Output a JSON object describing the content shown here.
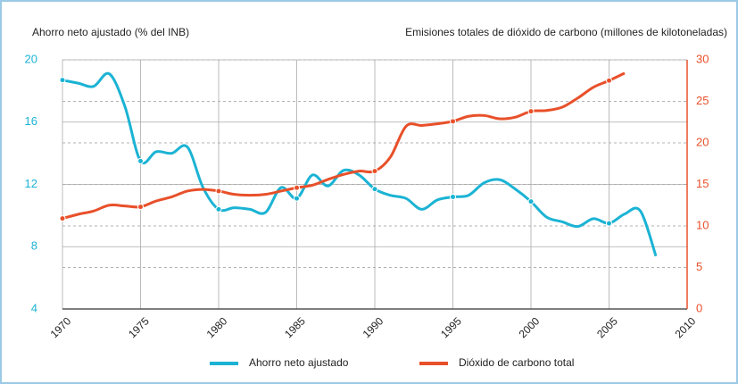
{
  "chart_data": {
    "type": "line",
    "y_label": "Ahorro neto ajustado (% del INB)",
    "y2_label": "Emisiones totales de dióxido de carbono (millones de kilotoneladas)",
    "x": [
      1970,
      1971,
      1972,
      1973,
      1974,
      1975,
      1976,
      1977,
      1978,
      1979,
      1980,
      1981,
      1982,
      1983,
      1984,
      1985,
      1986,
      1987,
      1988,
      1989,
      1990,
      1991,
      1992,
      1993,
      1994,
      1995,
      1996,
      1997,
      1998,
      1999,
      2000,
      2001,
      2002,
      2003,
      2004,
      2005,
      2006,
      2007,
      2008
    ],
    "series": [
      {
        "name": "Ahorro neto ajustado",
        "color": "#1bb3d4",
        "axis": "y",
        "values": [
          18.7,
          18.5,
          18.3,
          19.1,
          17,
          13.5,
          14.1,
          14,
          14.4,
          11.8,
          10.4,
          10.5,
          10.4,
          10.2,
          11.8,
          11.1,
          12.6,
          11.9,
          12.9,
          12.6,
          11.7,
          11.3,
          11.1,
          10.4,
          11,
          11.2,
          11.3,
          12.1,
          12.3,
          11.7,
          10.9,
          9.9,
          9.6,
          9.3,
          9.8,
          9.5,
          10.1,
          10.3,
          7.4
        ]
      },
      {
        "name": "Dióxido de carbono total",
        "color": "#e8502a",
        "axis": "y2",
        "values": [
          10.9,
          11.4,
          11.8,
          12.5,
          12.4,
          12.3,
          13,
          13.5,
          14.2,
          14.4,
          14.2,
          13.8,
          13.7,
          13.8,
          14.2,
          14.6,
          14.9,
          15.6,
          16.2,
          16.6,
          16.6,
          18.3,
          22,
          22.1,
          22.3,
          22.6,
          23.2,
          23.3,
          22.9,
          23.1,
          23.8,
          23.9,
          24.3,
          25.4,
          26.7,
          27.5,
          28.4,
          null,
          null
        ]
      }
    ],
    "xlim": [
      1970,
      2010
    ],
    "xticks": [
      1970,
      1975,
      1980,
      1985,
      1990,
      1995,
      2000,
      2005,
      2010
    ],
    "ylim": [
      4,
      20
    ],
    "yticks": [
      4,
      8,
      12,
      16,
      20
    ],
    "y2lim": [
      0,
      30
    ],
    "y2ticks": [
      0,
      5,
      10,
      15,
      20,
      25,
      30
    ],
    "grid": true,
    "legend": "bottom"
  }
}
